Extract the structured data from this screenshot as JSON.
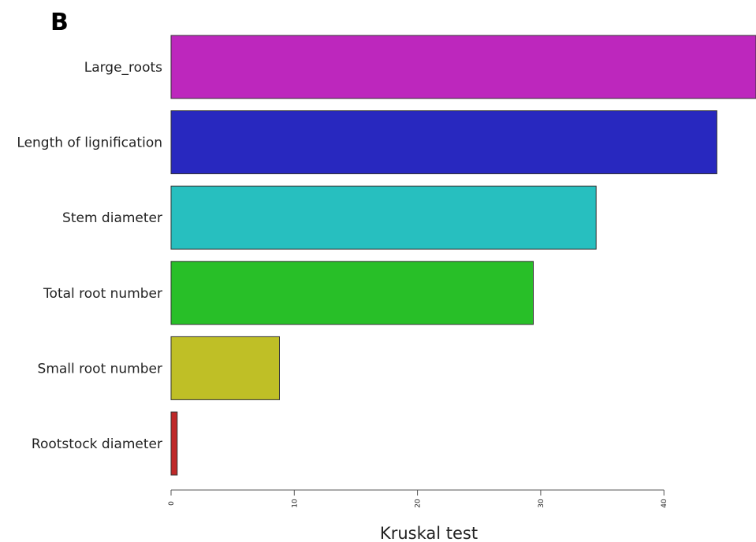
{
  "panel_label": "B",
  "colors": {
    "bars": [
      "#bd27bd",
      "#2828bf",
      "#27bfbf",
      "#28bf28",
      "#bfbf26",
      "#bf2828"
    ],
    "bar_stroke": "#333333",
    "axis": "#555555"
  },
  "chart_data": {
    "type": "bar",
    "orientation": "horizontal",
    "categories": [
      "Large_roots",
      "Length of lignification",
      "Stem diameter",
      "Total root number",
      "Small root number",
      "Rootstock diameter"
    ],
    "values": [
      47.5,
      44.3,
      34.5,
      29.4,
      8.8,
      0.5
    ],
    "xlabel": "Kruskal test",
    "ylabel": "",
    "title": "",
    "xticks": [
      "0",
      "10",
      "20",
      "30",
      "40"
    ],
    "xtick_values": [
      0,
      10,
      20,
      30,
      40
    ],
    "xlim": [
      0,
      47.5
    ],
    "grid": false,
    "legend": "none"
  }
}
